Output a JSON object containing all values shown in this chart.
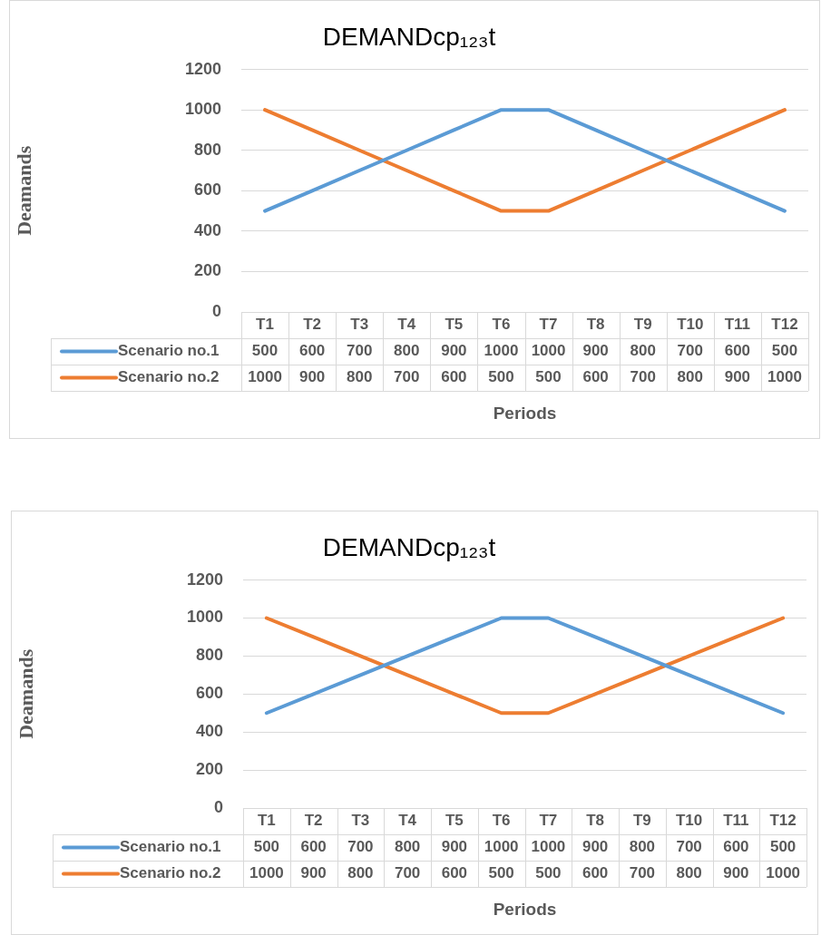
{
  "chart_data": [
    {
      "type": "line",
      "title": "DEMANDcp₁₂₃t",
      "xlabel": "Periods",
      "ylabel": "Deamands",
      "categories": [
        "T1",
        "T2",
        "T3",
        "T4",
        "T5",
        "T6",
        "T7",
        "T8",
        "T9",
        "T10",
        "T11",
        "T12"
      ],
      "series": [
        {
          "name": "Scenario no.1",
          "color": "#5b9bd5",
          "values": [
            500,
            600,
            700,
            800,
            900,
            1000,
            1000,
            900,
            800,
            700,
            600,
            500
          ]
        },
        {
          "name": "Scenario no.2",
          "color": "#ed7d31",
          "values": [
            1000,
            900,
            800,
            700,
            600,
            500,
            500,
            600,
            700,
            800,
            900,
            1000
          ]
        }
      ],
      "ylim": [
        0,
        1200
      ],
      "yticks": [
        0,
        200,
        400,
        600,
        800,
        1000,
        1200
      ],
      "grid": "y",
      "legend": "bottom",
      "data_labels": true,
      "marker": "none",
      "line_style": "solid"
    },
    {
      "type": "line",
      "title": "DEMANDcp₁₂₃t",
      "xlabel": "Periods",
      "ylabel": "Deamands",
      "categories": [
        "T1",
        "T2",
        "T3",
        "T4",
        "T5",
        "T6",
        "T7",
        "T8",
        "T9",
        "T10",
        "T11",
        "T12"
      ],
      "series": [
        {
          "name": "Scenario no.1",
          "color": "#5b9bd5",
          "values": [
            500,
            600,
            700,
            800,
            900,
            1000,
            1000,
            900,
            800,
            700,
            600,
            500
          ]
        },
        {
          "name": "Scenario no.2",
          "color": "#ed7d31",
          "values": [
            1000,
            900,
            800,
            700,
            600,
            500,
            500,
            600,
            700,
            800,
            900,
            1000
          ]
        }
      ],
      "ylim": [
        0,
        1200
      ],
      "yticks": [
        0,
        200,
        400,
        600,
        800,
        1000,
        1200
      ],
      "grid": "y",
      "legend": "bottom",
      "data_labels": true,
      "marker": "none",
      "line_style": "solid"
    }
  ]
}
